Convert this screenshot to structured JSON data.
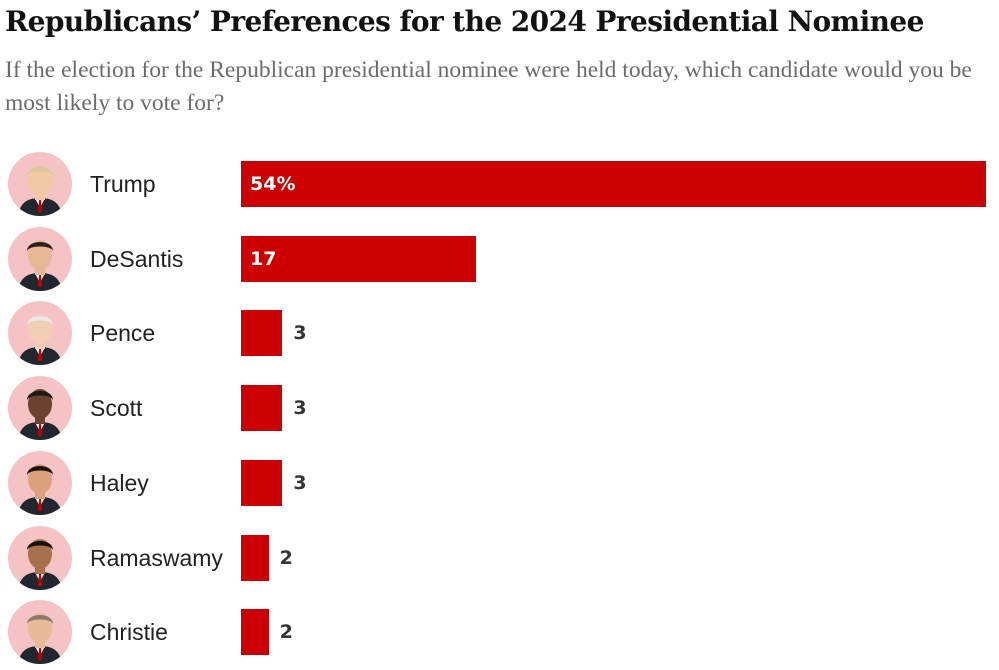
{
  "title": "Republicans’ Preferences for the 2024 Presidential Nominee",
  "subtitle": "If the election for the Republican presidential nominee were held today, which candidate would you be most likely to vote for?",
  "colors": {
    "bar": "#cc0000",
    "avatar_bg": "#f5c3c3",
    "title": "#121212",
    "subtitle": "#6b6b6b"
  },
  "chart_data": {
    "type": "bar",
    "orientation": "horizontal",
    "title": "Republicans’ Preferences for the 2024 Presidential Nominee",
    "subtitle": "If the election for the Republican presidential nominee were held today, which candidate would you be most likely to vote for?",
    "categories": [
      "Trump",
      "DeSantis",
      "Pence",
      "Scott",
      "Haley",
      "Ramaswamy",
      "Christie"
    ],
    "values": [
      54,
      17,
      3,
      3,
      3,
      2,
      2
    ],
    "value_labels": [
      "54%",
      "17",
      "3",
      "3",
      "3",
      "2",
      "2"
    ],
    "unit": "%",
    "xlim": [
      0,
      54
    ],
    "grid": false,
    "legend": "none",
    "bar_color": "#cc0000"
  }
}
